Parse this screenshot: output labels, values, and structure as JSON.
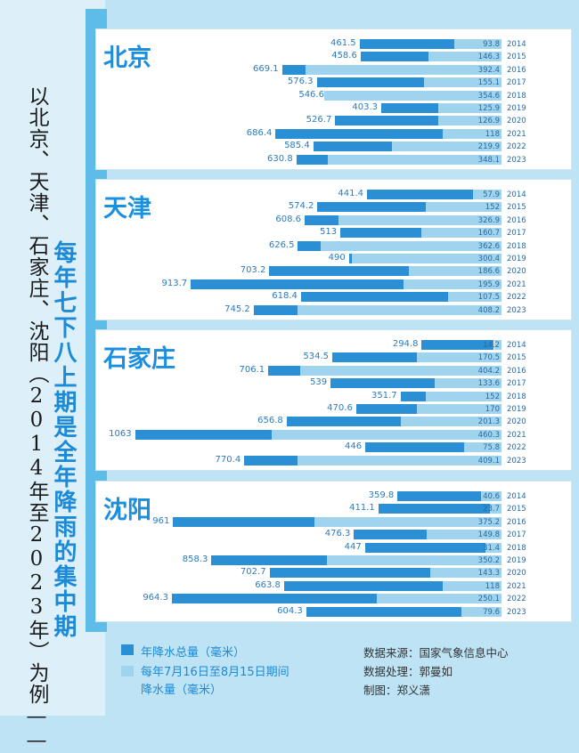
{
  "title": {
    "subtitle": "以北京、天津、石家庄、沈阳（2014年至2023年）为例——",
    "main": "每年七下八上期是全年降雨的集中期"
  },
  "legend": {
    "total_label": "年降水总量（毫米）",
    "rain_label_line1": "每年7月16日至8月15日期间",
    "rain_label_line2": "降水量（毫米）",
    "total_color": "#2b8fd6",
    "rain_color": "#9fd3ee"
  },
  "credits": {
    "source": "数据来源：国家气象信息中心",
    "processing": "数据处理：郭曼如",
    "drawing": "制图：郑义潇"
  },
  "chart_data": [
    {
      "type": "bar",
      "title": "北京",
      "categories": [
        "2014",
        "2015",
        "2016",
        "2017",
        "2018",
        "2019",
        "2020",
        "2021",
        "2022",
        "2023"
      ],
      "series": [
        {
          "name": "年降水总量（毫米）",
          "values": [
            461.5,
            458.6,
            669.1,
            576.3,
            546.6,
            403.3,
            526.7,
            686.4,
            585.4,
            630.8
          ]
        },
        {
          "name": "每年7月16日至8月15日期间降水量（毫米）",
          "values": [
            93.8,
            146.3,
            392.4,
            155.1,
            354.6,
            125.9,
            126.9,
            118,
            219.9,
            348.1
          ]
        }
      ],
      "total_labels": [
        "461.5",
        "458.6",
        "669.1",
        "576.3",
        "546.6",
        "403.3",
        "526.7",
        "686.4",
        "585.4",
        "630.8"
      ],
      "rain_labels": [
        "93.8",
        "146.3",
        "392.4",
        "155.1",
        "354.6",
        "125.9",
        "126.9",
        "118",
        "219.9",
        "348.1"
      ]
    },
    {
      "type": "bar",
      "title": "天津",
      "categories": [
        "2014",
        "2015",
        "2016",
        "2017",
        "2018",
        "2019",
        "2020",
        "2021",
        "2022",
        "2023"
      ],
      "series": [
        {
          "name": "年降水总量（毫米）",
          "values": [
            441.4,
            574.2,
            608.6,
            513,
            626.5,
            490,
            703.2,
            913.7,
            618.4,
            745.2
          ]
        },
        {
          "name": "每年7月16日至8月15日期间降水量（毫米）",
          "values": [
            57.9,
            152,
            326.9,
            160.7,
            362.6,
            300.4,
            186.6,
            195.9,
            107.5,
            408.2
          ]
        }
      ],
      "total_labels": [
        "441.4",
        "574.2",
        "608.6",
        "513",
        "626.5",
        "490",
        "703.2",
        "913.7",
        "618.4",
        "745.2"
      ],
      "rain_labels": [
        "57.9",
        "152",
        "326.9",
        "160.7",
        "362.6",
        "300.4",
        "186.6",
        "195.9",
        "107.5",
        "408.2"
      ]
    },
    {
      "type": "bar",
      "title": "石家庄",
      "categories": [
        "2014",
        "2015",
        "2016",
        "2017",
        "2018",
        "2019",
        "2020",
        "2021",
        "2022",
        "2023"
      ],
      "series": [
        {
          "name": "年降水总量（毫米）",
          "values": [
            294.8,
            534.5,
            706.1,
            539,
            351.7,
            470.6,
            656.8,
            1063,
            446,
            770.4
          ]
        },
        {
          "name": "每年7月16日至8月15日期间降水量（毫米）",
          "values": [
            14.2,
            170.5,
            404.2,
            133.6,
            152,
            170,
            201.3,
            460.3,
            75.8,
            409.1
          ]
        }
      ],
      "total_labels": [
        "294.8",
        "534.5",
        "706.1",
        "539",
        "351.7",
        "470.6",
        "656.8",
        "1063",
        "446",
        "770.4"
      ],
      "rain_labels": [
        "14.2",
        "170.5",
        "404.2",
        "133.6",
        "152",
        "170",
        "201.3",
        "460.3",
        "75.8",
        "409.1"
      ]
    },
    {
      "type": "bar",
      "title": "沈阳",
      "categories": [
        "2014",
        "2015",
        "2016",
        "2017",
        "2018",
        "2019",
        "2020",
        "2021",
        "2022",
        "2023"
      ],
      "series": [
        {
          "name": "年降水总量（毫米）",
          "values": [
            359.8,
            411.1,
            961,
            476.3,
            447,
            858.3,
            702.7,
            663.8,
            964.3,
            604.3
          ]
        },
        {
          "name": "每年7月16日至8月15日期间降水量（毫米）",
          "values": [
            40.6,
            23.7,
            375.2,
            149.8,
            31.4,
            350.2,
            143.3,
            118,
            250.1,
            79.6
          ]
        }
      ],
      "total_labels": [
        "359.8",
        "411.1",
        "961",
        "476.3",
        "447",
        "858.3",
        "702.7",
        "663.8",
        "964.3",
        "604.3"
      ],
      "rain_labels": [
        "40.6",
        "23.7",
        "375.2",
        "149.8",
        "31.4",
        "350.2",
        "143.3",
        "118",
        "250.1",
        "79.6"
      ]
    }
  ]
}
